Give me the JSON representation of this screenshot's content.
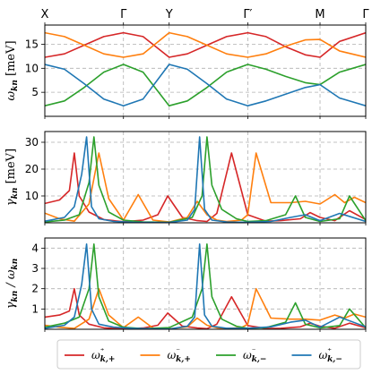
{
  "chart_data": [
    {
      "type": "line",
      "panel": "dispersion",
      "ylabel": "ω_kn [meV]",
      "ylim": [
        0,
        19
      ],
      "yticks": [
        5,
        10,
        15
      ],
      "xlim": [
        0,
        6.53
      ],
      "high_symmetry_points": [
        {
          "label": "X",
          "x": 0
        },
        {
          "label": "Γ",
          "x": 1.6
        },
        {
          "label": "Y",
          "x": 2.53
        },
        {
          "label": "Γ′",
          "x": 4.13
        },
        {
          "label": "M",
          "x": 5.6
        },
        {
          "label": "Γ",
          "x": 6.53
        }
      ],
      "series": [
        {
          "key": "pp",
          "color": "#d62728",
          "x": [
            0,
            0.4,
            0.8,
            1.2,
            1.6,
            2.0,
            2.53,
            2.9,
            3.3,
            3.7,
            4.13,
            4.5,
            4.9,
            5.3,
            5.6,
            6.0,
            6.53
          ],
          "values": [
            12.3,
            13.0,
            14.8,
            16.6,
            17.4,
            16.6,
            12.3,
            13.0,
            14.8,
            16.6,
            17.4,
            16.6,
            14.5,
            12.8,
            12.3,
            15.6,
            17.4
          ]
        },
        {
          "key": "mp",
          "color": "#ff7f0e",
          "x": [
            0,
            0.4,
            0.8,
            1.2,
            1.6,
            2.0,
            2.53,
            2.9,
            3.3,
            3.7,
            4.13,
            4.5,
            4.9,
            5.3,
            5.6,
            6.0,
            6.53
          ],
          "values": [
            17.4,
            16.6,
            14.8,
            13.0,
            12.3,
            13.0,
            17.4,
            16.6,
            14.8,
            13.0,
            12.3,
            13.0,
            14.6,
            15.9,
            16.0,
            13.6,
            12.3
          ]
        },
        {
          "key": "mm",
          "color": "#2ca02c",
          "x": [
            0,
            0.4,
            0.8,
            1.2,
            1.6,
            2.0,
            2.53,
            2.9,
            3.3,
            3.7,
            4.13,
            4.5,
            4.9,
            5.3,
            5.6,
            6.0,
            6.53
          ],
          "values": [
            2.2,
            3.2,
            6.0,
            9.2,
            10.8,
            9.2,
            2.2,
            3.2,
            6.0,
            9.2,
            10.8,
            9.8,
            8.3,
            7.0,
            6.6,
            9.2,
            10.8
          ]
        },
        {
          "key": "pm",
          "color": "#1f77b4",
          "x": [
            0,
            0.4,
            0.8,
            1.2,
            1.6,
            2.0,
            2.53,
            2.9,
            3.3,
            3.7,
            4.13,
            4.5,
            4.9,
            5.3,
            5.6,
            6.0,
            6.53
          ],
          "values": [
            10.8,
            9.8,
            6.8,
            3.6,
            2.2,
            3.6,
            10.8,
            9.8,
            6.8,
            3.6,
            2.2,
            3.2,
            4.6,
            6.0,
            6.6,
            3.8,
            2.2
          ]
        }
      ]
    },
    {
      "type": "line",
      "panel": "linewidth",
      "ylabel": "γ_kn [meV]",
      "ylim": [
        0,
        34
      ],
      "yticks": [
        10,
        20,
        30
      ],
      "xlim": [
        0,
        6.53
      ],
      "series": [
        {
          "key": "pp",
          "color": "#d62728",
          "x": [
            0,
            0.3,
            0.5,
            0.6,
            0.7,
            0.9,
            1.2,
            1.6,
            2.0,
            2.3,
            2.5,
            2.8,
            3.1,
            3.3,
            3.5,
            3.8,
            4.13,
            4.5,
            4.8,
            5.2,
            5.4,
            5.6,
            5.9,
            6.2,
            6.53
          ],
          "values": [
            7.2,
            8.5,
            12.0,
            26.0,
            10.0,
            4.0,
            1.2,
            0.4,
            1.0,
            3.0,
            10.0,
            2.0,
            0.8,
            0.5,
            3.5,
            26.0,
            3.0,
            0.6,
            0.8,
            1.5,
            3.8,
            2.0,
            0.8,
            4.5,
            1.2
          ]
        },
        {
          "key": "mp",
          "color": "#ff7f0e",
          "x": [
            0,
            0.3,
            0.6,
            0.9,
            1.1,
            1.3,
            1.6,
            1.9,
            2.2,
            2.53,
            2.9,
            3.1,
            3.3,
            3.5,
            3.7,
            4.0,
            4.13,
            4.3,
            4.6,
            5.0,
            5.3,
            5.6,
            5.9,
            6.1,
            6.3,
            6.53
          ],
          "values": [
            3.6,
            1.5,
            0.6,
            7.0,
            26.0,
            9.0,
            1.0,
            10.5,
            1.0,
            0.3,
            2.0,
            8.0,
            3.0,
            1.0,
            0.5,
            1.0,
            3.0,
            26.0,
            7.5,
            7.5,
            8.0,
            7.0,
            10.5,
            7.5,
            9.5,
            7.5
          ]
        },
        {
          "key": "mm",
          "color": "#2ca02c",
          "x": [
            0,
            0.4,
            0.7,
            0.9,
            1.0,
            1.1,
            1.3,
            1.6,
            2.0,
            2.53,
            3.0,
            3.2,
            3.3,
            3.4,
            3.6,
            3.9,
            4.13,
            4.5,
            4.9,
            5.1,
            5.3,
            5.6,
            6.0,
            6.2,
            6.53
          ],
          "values": [
            0.3,
            1.0,
            3.0,
            15.0,
            32.0,
            14.0,
            4.0,
            1.0,
            0.3,
            0.2,
            2.0,
            10.0,
            32.0,
            14.0,
            5.0,
            1.5,
            0.5,
            0.8,
            3.0,
            10.0,
            2.0,
            0.5,
            1.5,
            10.0,
            0.8
          ]
        },
        {
          "key": "pm",
          "color": "#1f77b4",
          "x": [
            0,
            0.4,
            0.6,
            0.75,
            0.85,
            0.95,
            1.1,
            1.4,
            1.8,
            2.53,
            2.9,
            3.05,
            3.15,
            3.25,
            3.4,
            3.7,
            4.13,
            4.6,
            5.0,
            5.3,
            5.6,
            6.0,
            6.53
          ],
          "values": [
            0.6,
            2.0,
            6.0,
            18.0,
            32.0,
            6.0,
            1.5,
            0.5,
            0.2,
            0.1,
            1.0,
            5.0,
            32.0,
            5.0,
            1.0,
            0.3,
            0.2,
            0.5,
            2.0,
            3.0,
            0.8,
            3.5,
            0.5
          ]
        }
      ]
    },
    {
      "type": "line",
      "panel": "ratio",
      "ylabel": "γ_kn / ω_kn",
      "ylim": [
        0,
        4.5
      ],
      "yticks": [
        1,
        2,
        3,
        4
      ],
      "xlim": [
        0,
        6.53
      ],
      "series": [
        {
          "key": "pp",
          "color": "#d62728",
          "x": [
            0,
            0.3,
            0.5,
            0.6,
            0.7,
            0.9,
            1.2,
            1.6,
            2.0,
            2.3,
            2.5,
            2.8,
            3.1,
            3.3,
            3.5,
            3.8,
            4.13,
            4.5,
            4.8,
            5.2,
            5.4,
            5.6,
            5.9,
            6.2,
            6.53
          ],
          "values": [
            0.6,
            0.7,
            0.9,
            2.0,
            0.7,
            0.25,
            0.07,
            0.02,
            0.06,
            0.2,
            0.8,
            0.15,
            0.06,
            0.03,
            0.25,
            1.6,
            0.18,
            0.04,
            0.05,
            0.12,
            0.3,
            0.15,
            0.05,
            0.3,
            0.07
          ]
        },
        {
          "key": "mp",
          "color": "#ff7f0e",
          "x": [
            0,
            0.3,
            0.6,
            0.9,
            1.1,
            1.3,
            1.6,
            1.9,
            2.2,
            2.53,
            2.9,
            3.1,
            3.3,
            3.5,
            3.7,
            4.0,
            4.13,
            4.3,
            4.6,
            5.0,
            5.3,
            5.6,
            5.9,
            6.1,
            6.3,
            6.53
          ],
          "values": [
            0.2,
            0.1,
            0.04,
            0.5,
            2.0,
            0.7,
            0.08,
            0.6,
            0.06,
            0.02,
            0.12,
            0.55,
            0.2,
            0.07,
            0.04,
            0.08,
            0.25,
            2.0,
            0.55,
            0.5,
            0.5,
            0.45,
            0.7,
            0.55,
            0.75,
            0.6
          ]
        },
        {
          "key": "mm",
          "color": "#2ca02c",
          "x": [
            0,
            0.4,
            0.7,
            0.9,
            1.0,
            1.1,
            1.3,
            1.6,
            2.0,
            2.53,
            3.0,
            3.2,
            3.3,
            3.4,
            3.6,
            3.9,
            4.13,
            4.5,
            4.9,
            5.1,
            5.3,
            5.6,
            6.0,
            6.2,
            6.53
          ],
          "values": [
            0.1,
            0.3,
            0.6,
            2.0,
            4.2,
            1.6,
            0.4,
            0.1,
            0.03,
            0.08,
            0.6,
            2.0,
            4.2,
            1.6,
            0.5,
            0.15,
            0.05,
            0.08,
            0.35,
            1.3,
            0.25,
            0.07,
            0.18,
            1.0,
            0.07
          ]
        },
        {
          "key": "pm",
          "color": "#1f77b4",
          "x": [
            0,
            0.4,
            0.6,
            0.75,
            0.85,
            0.95,
            1.1,
            1.4,
            1.8,
            2.53,
            2.9,
            3.05,
            3.15,
            3.25,
            3.4,
            3.7,
            4.13,
            4.6,
            5.0,
            5.3,
            5.6,
            6.0,
            6.53
          ],
          "values": [
            0.05,
            0.2,
            0.6,
            2.2,
            4.2,
            1.0,
            0.25,
            0.1,
            0.05,
            0.01,
            0.15,
            0.6,
            4.2,
            0.7,
            0.15,
            0.05,
            0.05,
            0.12,
            0.35,
            0.45,
            0.1,
            0.6,
            0.12
          ]
        }
      ]
    }
  ],
  "legend": {
    "placement": "bottom",
    "items": [
      {
        "key": "pp",
        "label": "ω⁺_{k,+}",
        "color": "#d62728"
      },
      {
        "key": "mp",
        "label": "ω⁻_{k,+}",
        "color": "#ff7f0e"
      },
      {
        "key": "mm",
        "label": "ω⁻_{k,−}",
        "color": "#2ca02c"
      },
      {
        "key": "pm",
        "label": "ω⁺_{k,−}",
        "color": "#1f77b4"
      }
    ]
  }
}
